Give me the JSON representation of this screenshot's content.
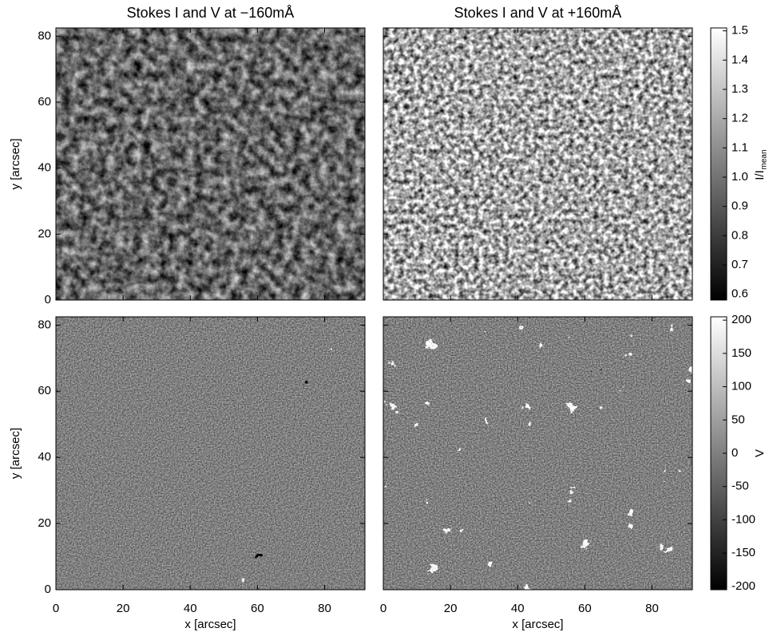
{
  "chart_data": [
    {
      "type": "image",
      "title": "Stokes I and V at −160mÅ",
      "ylabel": "y [arcsec]",
      "colormap": "gray",
      "xlim": [
        0,
        92
      ],
      "ylim": [
        0,
        82.5
      ],
      "xticks": [
        0,
        20,
        40,
        60,
        80
      ],
      "yticks": [
        0,
        20,
        40,
        60,
        80
      ],
      "tick_labels": {
        "x": false,
        "y": true
      }
    },
    {
      "type": "image",
      "title": "Stokes I and V at +160mÅ",
      "colormap": "gray",
      "xlim": [
        0,
        92
      ],
      "ylim": [
        0,
        82.5
      ],
      "xticks": [
        0,
        20,
        40,
        60,
        80
      ],
      "yticks": [
        0,
        20,
        40,
        60,
        80
      ],
      "tick_labels": {
        "x": false,
        "y": false
      },
      "colorbar": {
        "label": "I/I",
        "label_sub": "mean",
        "lim": [
          0.58,
          1.51
        ],
        "ticks": [
          0.6,
          0.7,
          0.8,
          0.9,
          {
            "value": 1,
            "label": "1.0"
          },
          1.1,
          1.2,
          1.3,
          1.4,
          1.5
        ]
      }
    },
    {
      "type": "image",
      "xlabel": "x [arcsec]",
      "ylabel": "y [arcsec]",
      "colormap": "gray",
      "xlim": [
        0,
        92
      ],
      "ylim": [
        0,
        82.5
      ],
      "xticks": [
        0,
        20,
        40,
        60,
        80
      ],
      "yticks": [
        0,
        20,
        40,
        60,
        80
      ],
      "tick_labels": {
        "x": true,
        "y": true
      }
    },
    {
      "type": "image",
      "xlabel": "x [arcsec]",
      "colormap": "gray",
      "xlim": [
        0,
        92
      ],
      "ylim": [
        0,
        82.5
      ],
      "xticks": [
        0,
        20,
        40,
        60,
        80
      ],
      "yticks": [
        0,
        20,
        40,
        60,
        80
      ],
      "tick_labels": {
        "x": true,
        "y": false
      },
      "colorbar": {
        "label": "V",
        "lim": [
          -205,
          205
        ],
        "ticks": [
          -200,
          -150,
          -100,
          -50,
          0,
          50,
          100,
          150,
          200
        ]
      }
    }
  ]
}
